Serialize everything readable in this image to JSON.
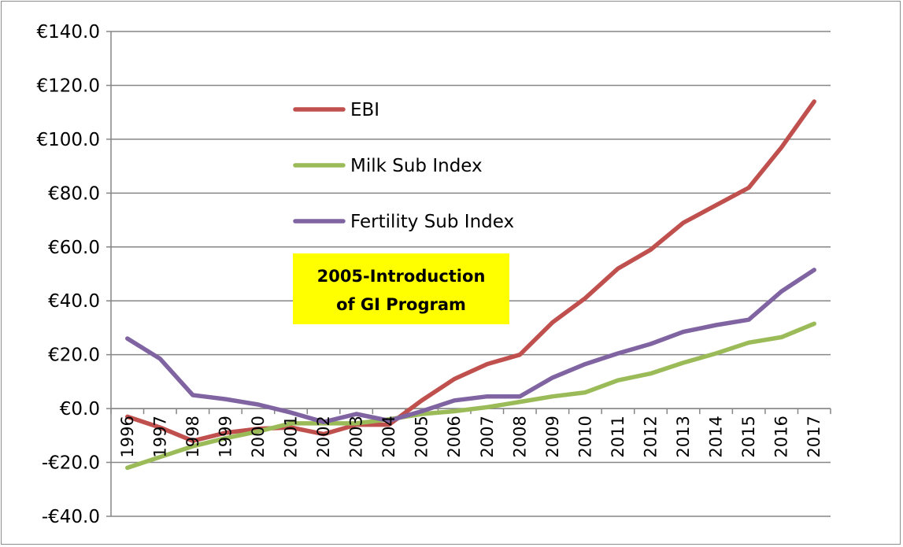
{
  "chart_data": {
    "type": "line",
    "title": "",
    "xlabel": "",
    "ylabel": "",
    "ylim": [
      -40,
      140
    ],
    "ytick_step": 20,
    "ytick_labels": [
      "€140.0",
      "€120.0",
      "€100.0",
      "€80.0",
      "€60.0",
      "€40.0",
      "€20.0",
      "€0.0",
      "-€20.0",
      "-€40.0"
    ],
    "ytick_values": [
      140,
      120,
      100,
      80,
      60,
      40,
      20,
      0,
      -20,
      -40
    ],
    "categories": [
      "1996",
      "1997",
      "1998",
      "1999",
      "2000",
      "2001",
      "2002",
      "2003",
      "2004",
      "2005",
      "2006",
      "2007",
      "2008",
      "2009",
      "2010",
      "2011",
      "2012",
      "2013",
      "2014",
      "2015",
      "2016",
      "2017"
    ],
    "grid": true,
    "legend_position": "upper-left inside plot",
    "series": [
      {
        "name": "EBI",
        "color": "#c0504d",
        "values": [
          -3,
          -7,
          -12,
          -9,
          -7.5,
          -7,
          -9.5,
          -6,
          -6,
          3,
          11,
          16.5,
          20,
          32,
          41,
          52,
          59,
          69,
          75.5,
          82,
          97,
          114
        ]
      },
      {
        "name": "Milk Sub Index",
        "color": "#9bbb59",
        "values": [
          -22,
          -18,
          -14,
          -11,
          -8.5,
          -5.5,
          -5.5,
          -5.5,
          -4,
          -2,
          -1,
          0.5,
          2.5,
          4.5,
          6,
          10.5,
          13,
          17,
          20.5,
          24.5,
          26.5,
          31.5
        ]
      },
      {
        "name": "Fertility Sub Index",
        "color": "#8064a2",
        "values": [
          26,
          18.5,
          5,
          3.5,
          1.5,
          -1.5,
          -5,
          -2,
          -4.5,
          -1,
          3,
          4.5,
          4.5,
          11.5,
          16.5,
          20.5,
          24,
          28.5,
          31,
          33,
          43.5,
          51.5
        ]
      }
    ],
    "annotations": [
      {
        "text_lines": [
          "2005-Introduction",
          "of GI Program"
        ],
        "background": "#ffff00"
      }
    ]
  }
}
